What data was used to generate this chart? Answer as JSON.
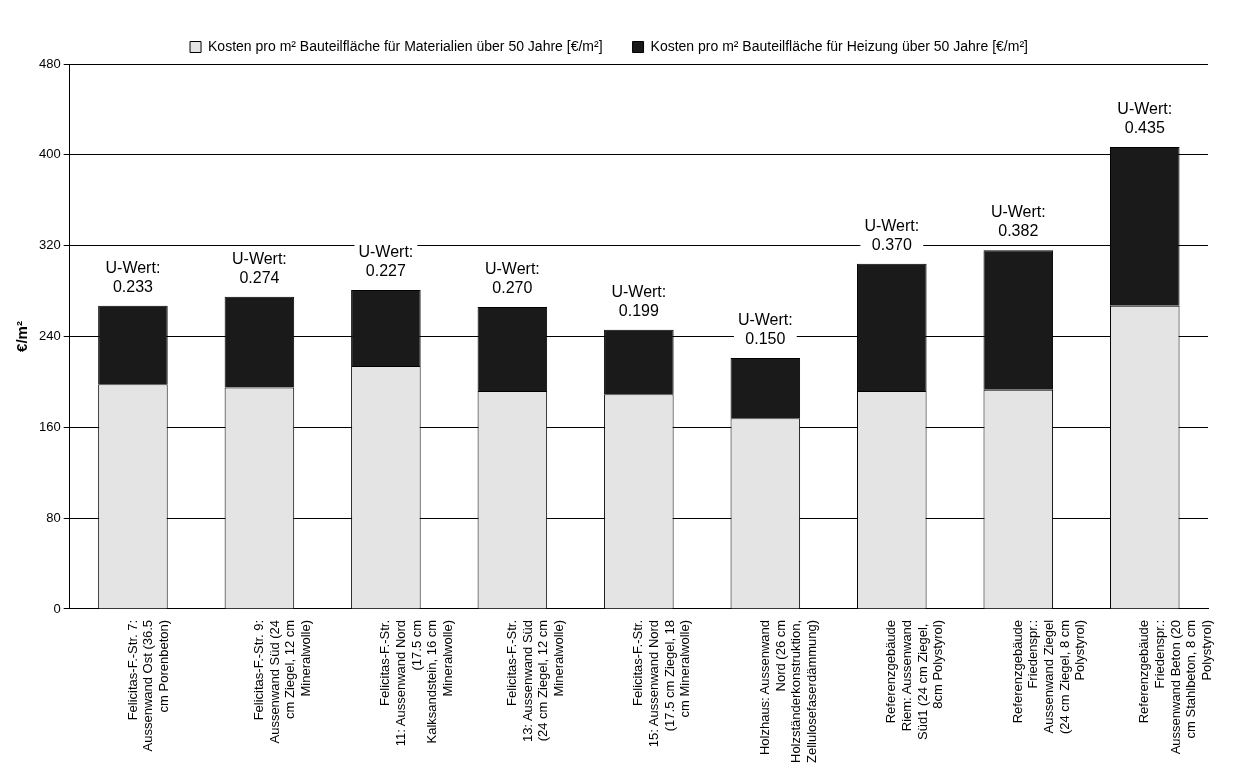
{
  "chart_data": {
    "type": "bar",
    "stacked": true,
    "ylabel": "€/m²",
    "legend": "top",
    "grid": "y",
    "categories": [
      "Felicitas-F.-Str. 7: Aussenwand Ost (36.5 cm Porenbeton)",
      "Felicitas-F.-Str. 9: Aussenwand Süd (24 cm Ziegel, 12 cm Mineralwolle)",
      "Felicitas-F.-Str. 11: Aussenwand Nord (17.5 cm Kalksandstein, 16 cm Mineralwolle)",
      "Felicitas-F.-Str. 13: Aussenwand Süd (24 cm Ziegel, 12 cm Mineralwolle)",
      "Felicitas-F.-Str. 15: Aussenwand Nord (17.5 cm Ziegel, 18 cm Mineralwolle)",
      "Holzhaus: Aussenwand Nord (26 cm Holzständerkonstruktion, Zellulosefaserdämmung)",
      "Referenzgebäude Riem: Aussenwand Süd1 (24 cm Ziegel,  8cm Polystyrol)",
      "Referenzgebäude Friedenspr.: Aussenwand Ziegel (24 cm Ziegel, 8 cm Polystyrol)",
      "Referenzgebäude Friedenspr.: Aussenwand Beton (20 cm Stahlbeton, 8 cm Polystyrol)"
    ],
    "series": [
      {
        "name": "Kosten pro m² Bauteilfläche für Materialien über 50 Jahre [€/m²]",
        "color": "#e4e4e4",
        "values": [
          198,
          195,
          214,
          192,
          189,
          168,
          192,
          193,
          267
        ]
      },
      {
        "name": "Kosten pro m² Bauteilfläche für Heizung über 50 Jahre [€/m²]",
        "color": "#1a1a1a",
        "values": [
          69,
          80,
          67,
          74,
          57,
          53,
          112,
          123,
          140
        ]
      }
    ],
    "ylim": [
      0,
      480
    ],
    "yticks": [
      0,
      80,
      160,
      240,
      320,
      400,
      480
    ],
    "annotations": [
      "U-Wert:\n0.233",
      "U-Wert:\n0.274",
      "U-Wert:\n0.227",
      "U-Wert:\n0.270",
      "U-Wert:\n0.199",
      "U-Wert:\n0.150",
      "U-Wert:\n0.370",
      "U-Wert:\n0.382",
      "U-Wert:\n0.435"
    ]
  }
}
